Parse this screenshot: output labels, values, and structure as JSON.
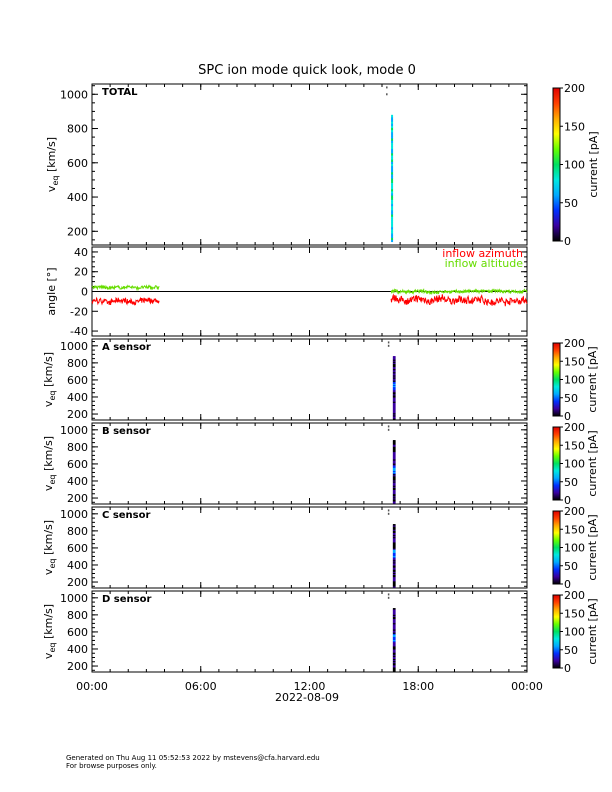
{
  "title": "SPC ion mode quick look, mode 0",
  "footer": {
    "line1": "Generated on Thu Aug 11 05:52:53 2022 by mstevens@cfa.harvard.edu",
    "line2": "For browse purposes only."
  },
  "colors": {
    "azimuth": "#ff0000",
    "altitude": "#66dd00",
    "colorbar_stops": [
      "#000000",
      "#3a00a0",
      "#0030ff",
      "#00aaff",
      "#00e8e0",
      "#00e060",
      "#66ff00",
      "#ffff00",
      "#ffaa00",
      "#ff4000",
      "#e00000"
    ]
  },
  "chart_data": {
    "type": "heatmap",
    "x_axis": {
      "label": "2022-08-09",
      "range_hours": [
        0,
        24
      ],
      "ticks": [
        0,
        6,
        12,
        18,
        24
      ],
      "tick_labels": [
        "00:00",
        "06:00",
        "12:00",
        "18:00",
        "00:00"
      ]
    },
    "panels": [
      {
        "id": "total",
        "label": "TOTAL",
        "kind": "spectrogram",
        "ylabel_main": "v",
        "ylabel_sub": "eq",
        "ylabel_rest": " [km/s]",
        "ylim": [
          120,
          1060
        ],
        "yticks": [
          200,
          400,
          600,
          800,
          1000
        ],
        "colorbar": {
          "label": "current [pA]",
          "range": [
            0,
            200
          ],
          "ticks": [
            0,
            50,
            100,
            150,
            200
          ]
        },
        "data_time_hours": [
          16.5,
          16.6
        ],
        "data_velocity_range": [
          140,
          880
        ],
        "stray_points": [
          1000,
          1040
        ]
      },
      {
        "id": "angle",
        "kind": "line",
        "ylabel": "angle [°]",
        "ylim": [
          -45,
          45
        ],
        "yticks": [
          -40,
          -20,
          0,
          20,
          40
        ],
        "zero_line": true,
        "legend_position": "top-right",
        "series": [
          {
            "name": "inflow azimuth",
            "color_key": "azimuth",
            "segments": [
              {
                "t0": 0.0,
                "t1": 3.7,
                "mean": -10,
                "amplitude": 5
              },
              {
                "t0": 16.5,
                "t1": 24.0,
                "mean": -9,
                "amplitude": 7
              }
            ]
          },
          {
            "name": "inflow altitude",
            "color_key": "altitude",
            "segments": [
              {
                "t0": 0.0,
                "t1": 3.7,
                "mean": 4,
                "amplitude": 3
              },
              {
                "t0": 16.5,
                "t1": 24.0,
                "mean": 0,
                "amplitude": 3
              }
            ]
          }
        ]
      },
      {
        "id": "a",
        "label": "A sensor",
        "kind": "spectrogram",
        "ylabel_main": "v",
        "ylabel_sub": "eq",
        "ylabel_rest": " [km/s]",
        "ylim": [
          130,
          1080
        ],
        "yticks": [
          200,
          400,
          600,
          800,
          1000
        ],
        "colorbar": {
          "label": "current [pA]",
          "range": [
            0,
            200
          ],
          "ticks": [
            0,
            50,
            100,
            150,
            200
          ]
        },
        "data_time_hours": [
          16.6,
          16.75
        ],
        "data_velocity_range": [
          140,
          880
        ],
        "stray_points": [
          1000,
          1040
        ]
      },
      {
        "id": "b",
        "label": "B sensor",
        "kind": "spectrogram",
        "ylabel_main": "v",
        "ylabel_sub": "eq",
        "ylabel_rest": " [km/s]",
        "ylim": [
          130,
          1080
        ],
        "yticks": [
          200,
          400,
          600,
          800,
          1000
        ],
        "colorbar": {
          "label": "current [pA]",
          "range": [
            0,
            200
          ],
          "ticks": [
            0,
            50,
            100,
            150,
            200
          ]
        },
        "data_time_hours": [
          16.6,
          16.75
        ],
        "data_velocity_range": [
          140,
          880
        ],
        "stray_points": [
          1000,
          1040
        ]
      },
      {
        "id": "c",
        "label": "C sensor",
        "kind": "spectrogram",
        "ylabel_main": "v",
        "ylabel_sub": "eq",
        "ylabel_rest": " [km/s]",
        "ylim": [
          130,
          1080
        ],
        "yticks": [
          200,
          400,
          600,
          800,
          1000
        ],
        "colorbar": {
          "label": "current [pA]",
          "range": [
            0,
            200
          ],
          "ticks": [
            0,
            50,
            100,
            150,
            200
          ]
        },
        "data_time_hours": [
          16.6,
          16.75
        ],
        "data_velocity_range": [
          140,
          880
        ],
        "stray_points": [
          1000,
          1040
        ]
      },
      {
        "id": "d",
        "label": "D sensor",
        "kind": "spectrogram",
        "ylabel_main": "v",
        "ylabel_sub": "eq",
        "ylabel_rest": " [km/s]",
        "ylim": [
          130,
          1080
        ],
        "yticks": [
          200,
          400,
          600,
          800,
          1000
        ],
        "colorbar": {
          "label": "current [pA]",
          "range": [
            0,
            200
          ],
          "ticks": [
            0,
            50,
            100,
            150,
            200
          ]
        },
        "data_time_hours": [
          16.6,
          16.75
        ],
        "data_velocity_range": [
          140,
          880
        ],
        "stray_points": [
          1000,
          1040
        ]
      }
    ]
  }
}
